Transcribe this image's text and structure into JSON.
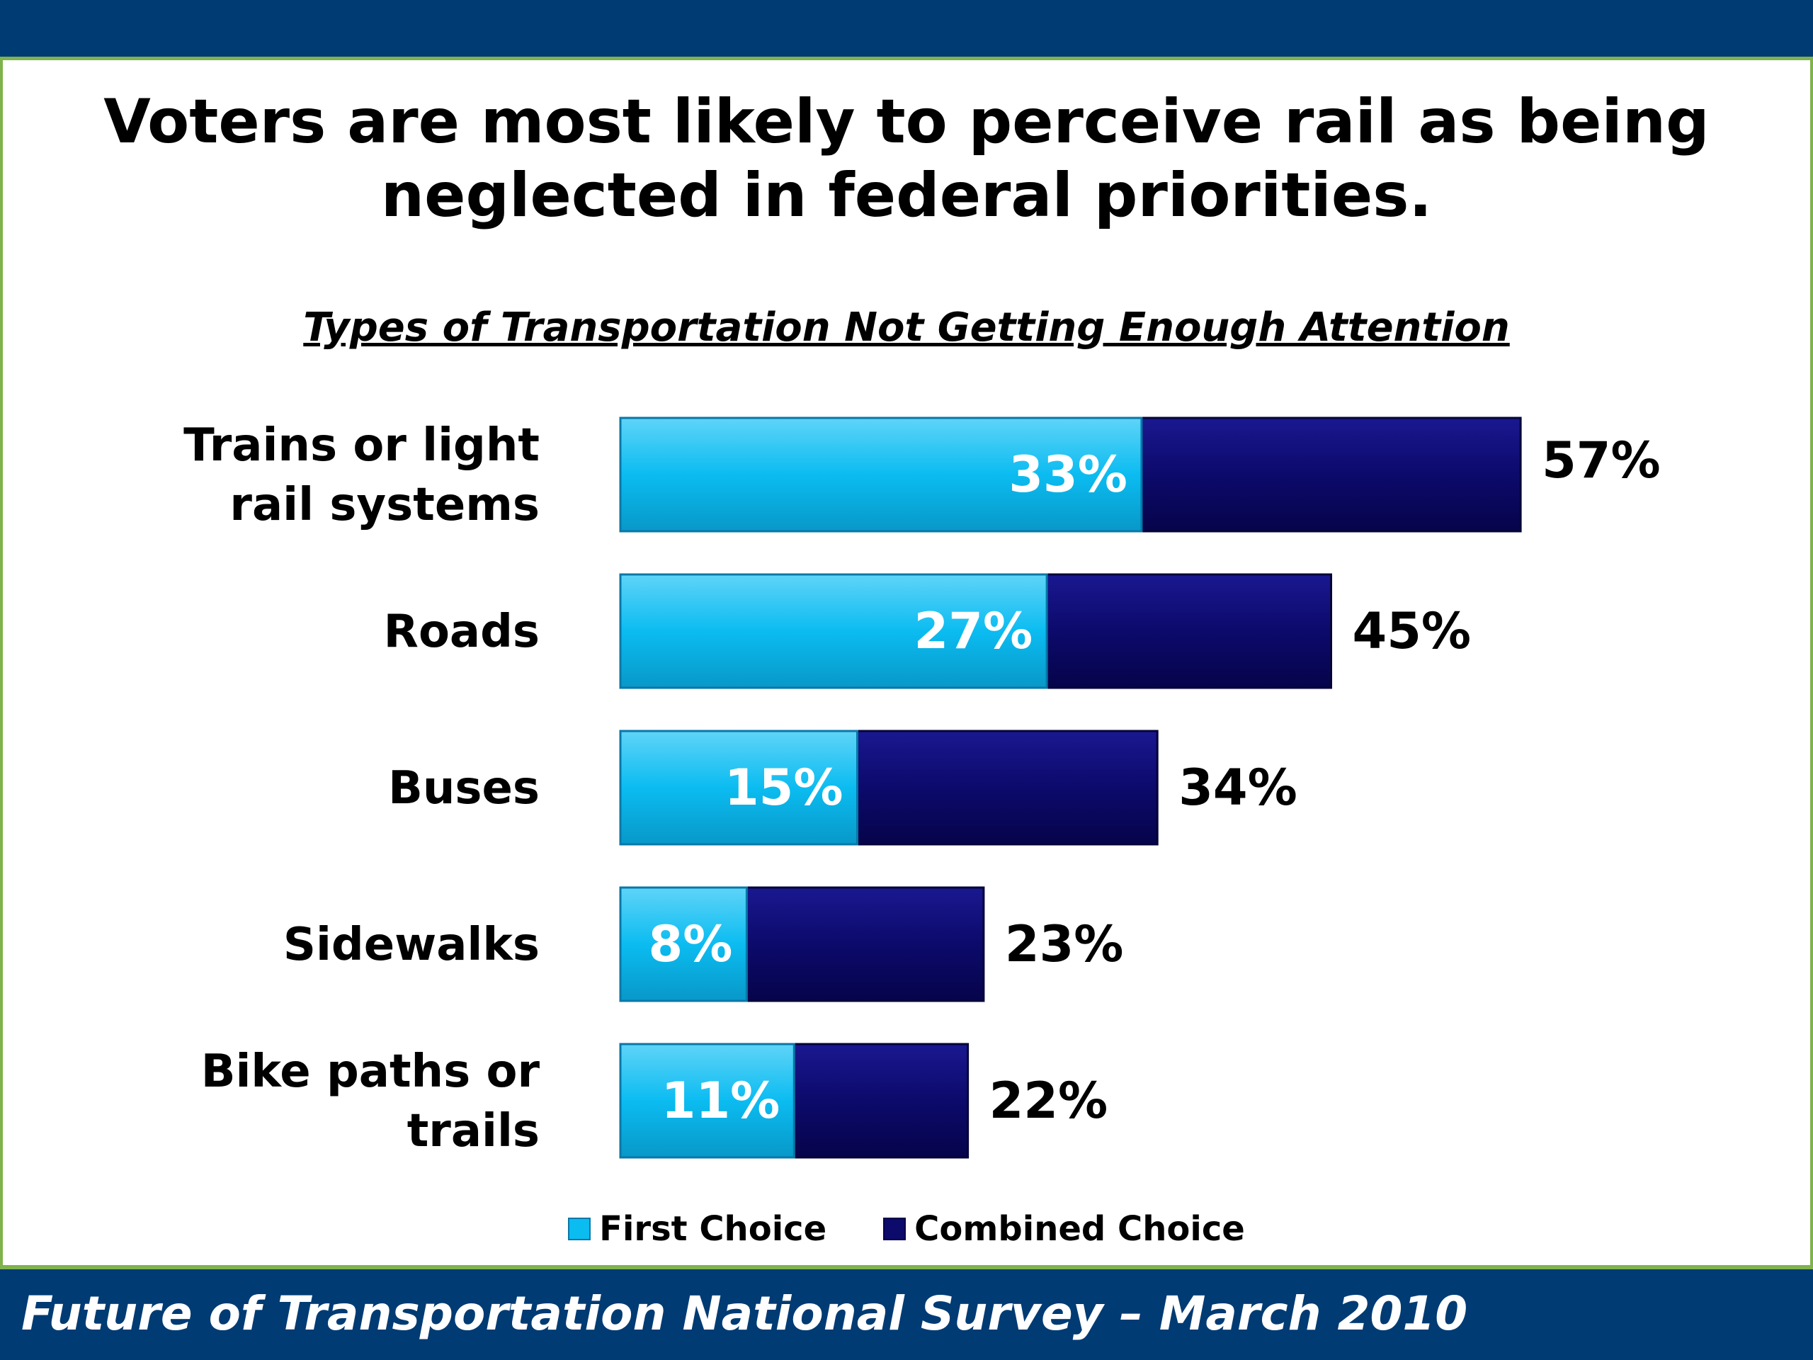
{
  "slide": {
    "title": "Voters are most likely to perceive rail as being neglected in federal priorities.",
    "footer": "Future of Transportation National Survey – March 2010"
  },
  "colors": {
    "first": "#0bbcf1",
    "combined": "#0c0a6b",
    "band": "#003b73",
    "accent": "#7fb34d"
  },
  "chart_data": {
    "type": "bar",
    "orientation": "horizontal",
    "title": "Types of Transportation Not Getting Enough Attention",
    "categories": [
      [
        "Trains or light",
        "rail systems"
      ],
      [
        "Roads"
      ],
      [
        "Buses"
      ],
      [
        "Sidewalks"
      ],
      [
        "Bike paths or",
        "trails"
      ]
    ],
    "series": [
      {
        "name": "First Choice",
        "values": [
          33,
          27,
          15,
          8,
          11
        ]
      },
      {
        "name": "Combined Choice",
        "values": [
          57,
          45,
          34,
          23,
          22
        ]
      }
    ],
    "value_suffix": "%",
    "xlim": [
      0,
      100
    ],
    "grid": false,
    "legend": "bottom"
  }
}
